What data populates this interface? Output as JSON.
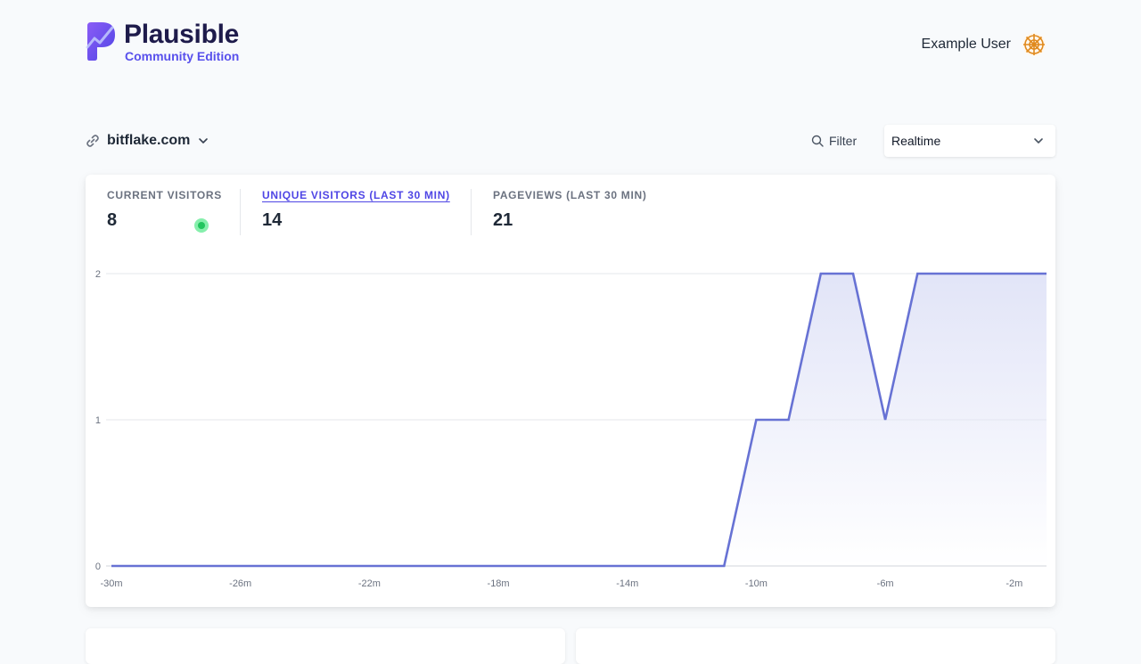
{
  "app": {
    "logo_title": "Plausible",
    "logo_subtitle": "Community Edition",
    "brand_color": "#5850ec"
  },
  "user": {
    "name": "Example User",
    "avatar_icon": "avatar-icon"
  },
  "site": {
    "domain": "bitflake.com",
    "link_icon": "link-icon",
    "dropdown_icon": "chevron-down-icon"
  },
  "toolbar": {
    "filter_label": "Filter",
    "period_label": "Realtime"
  },
  "stats": [
    {
      "label": "CURRENT VISITORS",
      "value": "8",
      "active": false
    },
    {
      "label": "UNIQUE VISITORS (LAST 30 MIN)",
      "value": "14",
      "active": true
    },
    {
      "label": "PAGEVIEWS (LAST 30 MIN)",
      "value": "21",
      "active": false
    }
  ],
  "colors": {
    "line": "#6772d4",
    "fill": "#e0e3f7",
    "live_dot": "#22c55e"
  },
  "chart_data": {
    "type": "area",
    "title": "",
    "xlabel": "",
    "ylabel": "",
    "x_ticks": [
      "-30m",
      "-26m",
      "-22m",
      "-18m",
      "-14m",
      "-10m",
      "-6m",
      "-2m"
    ],
    "y_ticks": [
      "0",
      "1",
      "2"
    ],
    "xlim": [
      -30,
      -1
    ],
    "ylim": [
      0,
      2
    ],
    "grid": true,
    "series": [
      {
        "x": [
          -30,
          -29,
          -28,
          -27,
          -26,
          -25,
          -24,
          -23,
          -22,
          -21,
          -20,
          -19,
          -18,
          -17,
          -16,
          -15,
          -14,
          -13,
          -12,
          -11,
          -10,
          -9,
          -8,
          -7,
          -6,
          -5,
          -4,
          -3,
          -2,
          -1
        ],
        "values": [
          0,
          0,
          0,
          0,
          0,
          0,
          0,
          0,
          0,
          0,
          0,
          0,
          0,
          0,
          0,
          0,
          0,
          0,
          0,
          0,
          1,
          1,
          2,
          2,
          1,
          2,
          2,
          2,
          2,
          2
        ]
      }
    ]
  }
}
